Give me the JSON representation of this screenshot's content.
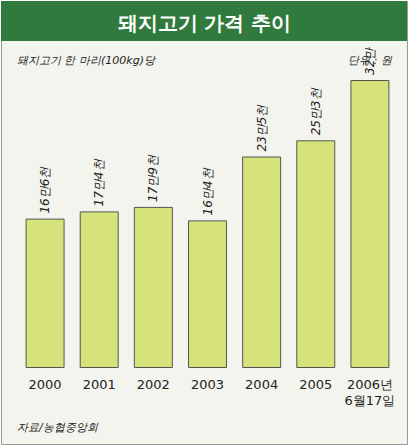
{
  "chart_data": {
    "type": "bar",
    "title": "돼지고기 가격 추이",
    "subtitle": "돼지고기 한 마리(100kg)당",
    "annotations": [
      "단위 : 원",
      "자료/농협중앙회"
    ],
    "categories": [
      "2000",
      "2001",
      "2002",
      "2003",
      "2004",
      "2005",
      "2006년\n6월17일"
    ],
    "values": [
      166000,
      174000,
      179000,
      164000,
      235000,
      253000,
      320000
    ],
    "value_labels": [
      "16만6천",
      "17만4천",
      "17만9천",
      "16만4천",
      "23만5천",
      "25만3천",
      "32만"
    ],
    "color": "#d6e27a",
    "ylim": [
      0,
      320000
    ],
    "grid": false,
    "data_labels": true,
    "tick_labels": "x"
  }
}
